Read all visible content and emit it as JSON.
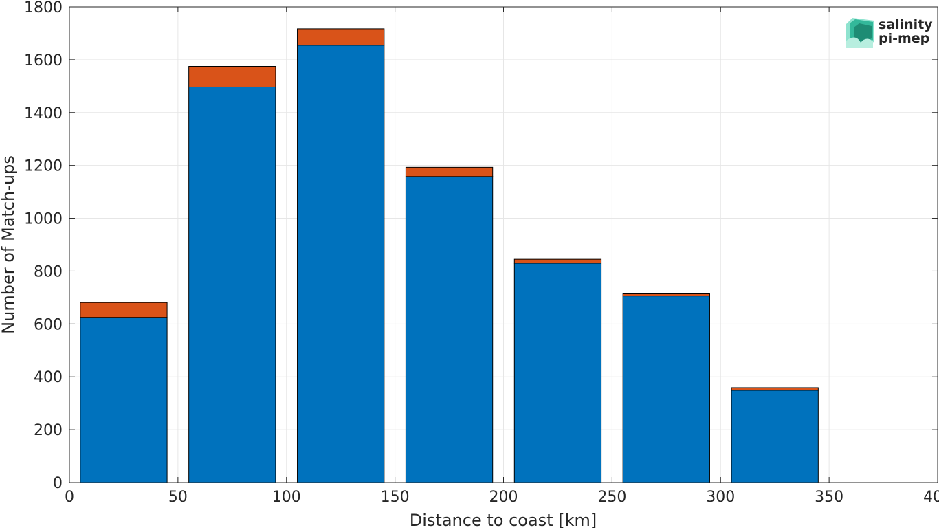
{
  "logo": {
    "line1": "salinity",
    "line2": "pi-mep",
    "color1": "#1AAE9F",
    "color2": "#1F5C50"
  },
  "chart_data": {
    "type": "bar",
    "stacked": true,
    "xlabel": "Distance to coast [km]",
    "ylabel": "Number of Match-ups",
    "xlim": [
      0,
      400
    ],
    "ylim": [
      0,
      1800
    ],
    "xticks": [
      0,
      50,
      100,
      150,
      200,
      250,
      300,
      350,
      400
    ],
    "yticks": [
      0,
      200,
      400,
      600,
      800,
      1000,
      1200,
      1400,
      1600,
      1800
    ],
    "grid": true,
    "bin_width": 40,
    "bin_centers": [
      25,
      75,
      125,
      175,
      225,
      275,
      325
    ],
    "series": [
      {
        "color": "#0072BD",
        "values": [
          625,
          1497,
          1655,
          1158,
          830,
          706,
          349
        ]
      },
      {
        "color": "#D95319",
        "values": [
          56,
          78,
          62,
          35,
          15,
          8,
          10
        ]
      }
    ]
  }
}
